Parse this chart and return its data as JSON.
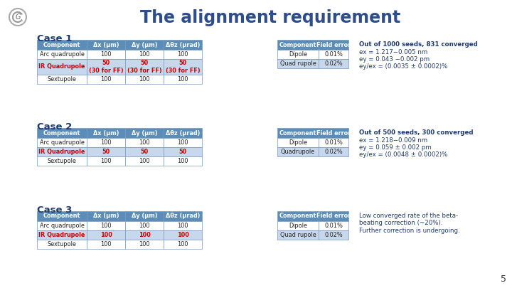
{
  "title": "The alignment requirement",
  "title_color": "#2E4D8B",
  "title_fontsize": 17,
  "bg_color": "#FFFFFF",
  "table_header_bg": "#5B8DB8",
  "table_header_text": "#FFFFFF",
  "table_row_bg": "#FFFFFF",
  "table_alt_row_bg": "#C8D8EC",
  "table_border_color": "#7799BB",
  "main_col_headers": [
    "Component",
    "Δx (μm)",
    "Δy (μm)",
    "Δθz (μrad)"
  ],
  "field_col_headers": [
    "Component",
    "Field error"
  ],
  "cases": [
    {
      "label": "Case 1",
      "rows": [
        [
          "Arc quadrupole",
          "100",
          "100",
          "100"
        ],
        [
          "IR Quadrupole",
          "50\n(30 for FF)",
          "50\n(30 for FF)",
          "50\n(30 for FF)"
        ],
        [
          "Sextupole",
          "100",
          "100",
          "100"
        ]
      ],
      "ir_color": "#CC0000",
      "field_rows": [
        [
          "Dipole",
          "0.01%"
        ],
        [
          "Quad rupole",
          "0.02%"
        ]
      ],
      "note_bold_line": "Out of 1000 seeds, 831 converged",
      "note_lines": [
        "ex = 1.217−0.005 nm",
        "ey = 0.043 −0.002 pm",
        "ey/ex = (0.0035 ± 0.0002)%"
      ]
    },
    {
      "label": "Case 2",
      "rows": [
        [
          "Arc quadrupole",
          "100",
          "100",
          "100"
        ],
        [
          "IR Quadrupole",
          "50",
          "50",
          "50"
        ],
        [
          "Sextupole",
          "100",
          "100",
          "100"
        ]
      ],
      "ir_color": "#CC0000",
      "field_rows": [
        [
          "Dipole",
          "0.01%"
        ],
        [
          "Quadrupole",
          "0.02%"
        ]
      ],
      "note_bold_line": "Out of 500 seeds, 300 converged",
      "note_lines": [
        "ex = 1.218−0.009 nm",
        "ey = 0.059 ± 0.002 pm",
        "ey/ex = (0.0048 ± 0.0002)%"
      ]
    },
    {
      "label": "Case 3",
      "rows": [
        [
          "Arc quadrupole",
          "100",
          "100",
          "100"
        ],
        [
          "IR Quadrupole",
          "100",
          "100",
          "100"
        ],
        [
          "Sextupole",
          "100",
          "100",
          "100"
        ]
      ],
      "ir_color": "#CC0000",
      "field_rows": [
        [
          "Dipole",
          "0.01%"
        ],
        [
          "Quad rupole",
          "0.02%"
        ]
      ],
      "note_bold_line": null,
      "note_lines": [
        "Low converged rate of the beta-",
        "beating correction (~20%).",
        "Further correction is undergoing."
      ]
    }
  ],
  "page_number": "5",
  "case_label_fontsize": 9.5,
  "case_label_color": "#1F3A6B",
  "note_color": "#1F3A6B",
  "note_fontsize": 6.2,
  "table_fontsize": 5.9
}
